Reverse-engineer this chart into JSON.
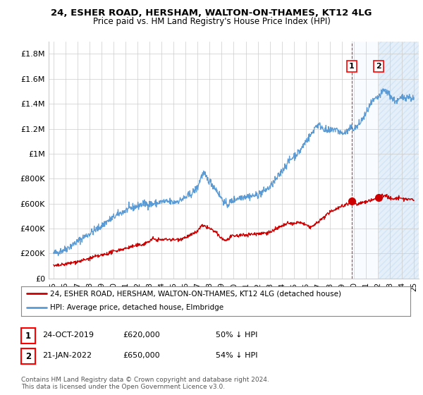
{
  "title": "24, ESHER ROAD, HERSHAM, WALTON-ON-THAMES, KT12 4LG",
  "subtitle": "Price paid vs. HM Land Registry's House Price Index (HPI)",
  "ylim": [
    0,
    1900000
  ],
  "yticks": [
    0,
    200000,
    400000,
    600000,
    800000,
    1000000,
    1200000,
    1400000,
    1600000,
    1800000
  ],
  "ytick_labels": [
    "£0",
    "£200K",
    "£400K",
    "£600K",
    "£800K",
    "£1M",
    "£1.2M",
    "£1.4M",
    "£1.6M",
    "£1.8M"
  ],
  "xlim_start": 1994.6,
  "xlim_end": 2025.4,
  "xticks": [
    1995,
    1996,
    1997,
    1998,
    1999,
    2000,
    2001,
    2002,
    2003,
    2004,
    2005,
    2006,
    2007,
    2008,
    2009,
    2010,
    2011,
    2012,
    2013,
    2014,
    2015,
    2016,
    2017,
    2018,
    2019,
    2020,
    2021,
    2022,
    2023,
    2024,
    2025
  ],
  "hpi_color": "#5b9bd5",
  "price_color": "#cc0000",
  "vline_color": "#cc0000",
  "vline_x": 2019.82,
  "shade_from": 2019.82,
  "shade_color": "#ddeeff",
  "marker1_x": 2019.82,
  "marker1_y": 620000,
  "marker2_x": 2022.05,
  "marker2_y": 650000,
  "legend_label1": "24, ESHER ROAD, HERSHAM, WALTON-ON-THAMES, KT12 4LG (detached house)",
  "legend_label2": "HPI: Average price, detached house, Elmbridge",
  "footnote": "Contains HM Land Registry data © Crown copyright and database right 2024.\nThis data is licensed under the Open Government Licence v3.0.",
  "table": [
    {
      "num": "1",
      "date": "24-OCT-2019",
      "price": "£620,000",
      "hpi": "50% ↓ HPI"
    },
    {
      "num": "2",
      "date": "21-JAN-2022",
      "price": "£650,000",
      "hpi": "54% ↓ HPI"
    }
  ],
  "background_color": "#ffffff",
  "grid_color": "#cccccc"
}
